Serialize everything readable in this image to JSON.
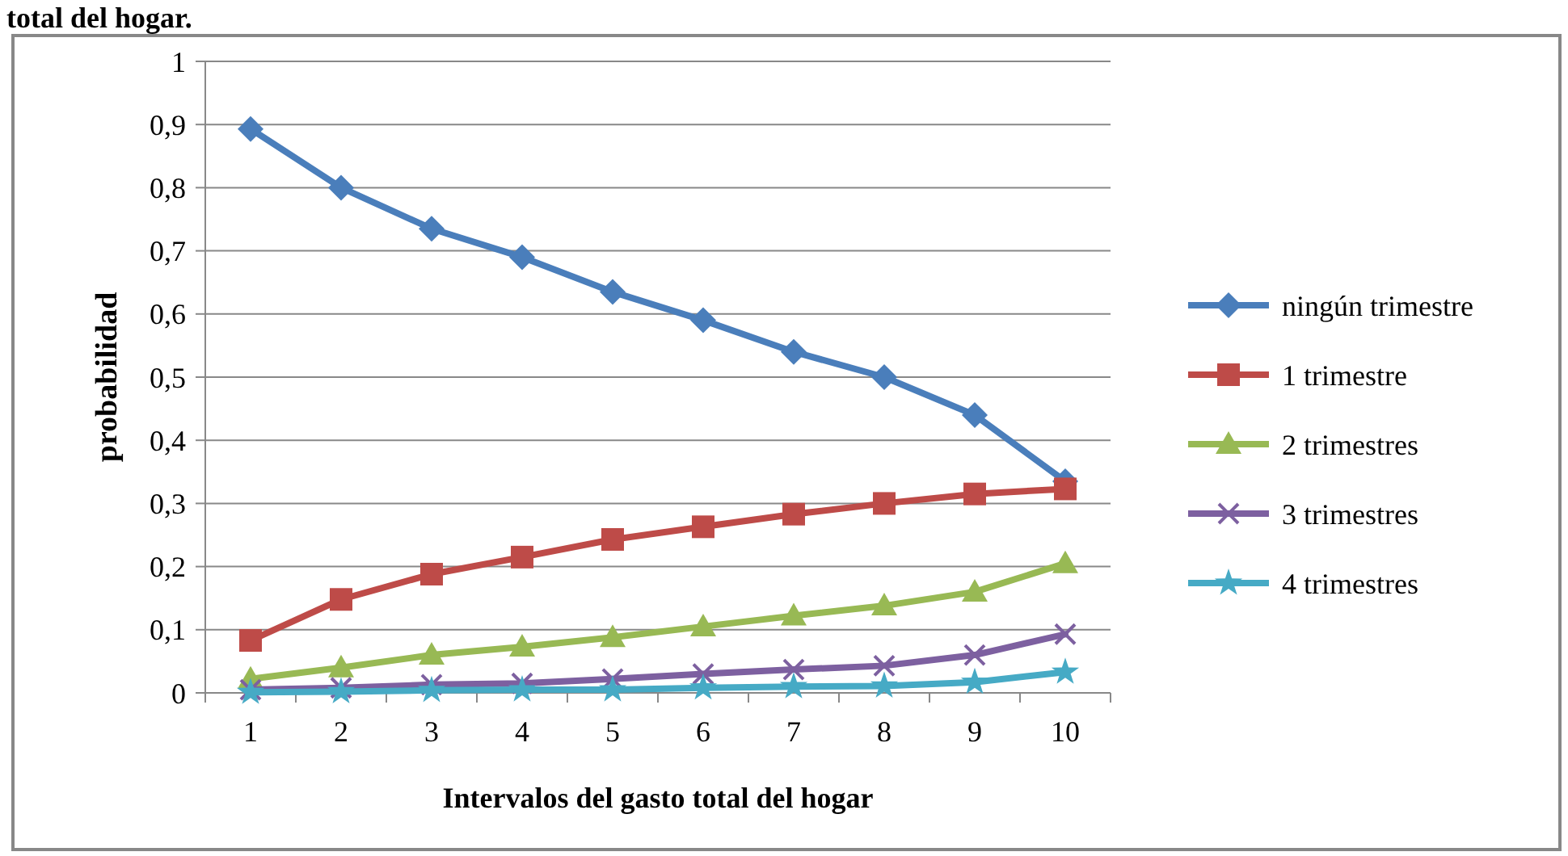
{
  "chart_data": {
    "type": "line",
    "annotations": [
      "total del hogar."
    ],
    "xlabel": "Intervalos del gasto total del hogar",
    "ylabel": "probabilidad",
    "categories": [
      "1",
      "2",
      "3",
      "4",
      "5",
      "6",
      "7",
      "8",
      "9",
      "10"
    ],
    "ylim": [
      0,
      1
    ],
    "yticks": [
      0,
      {
        "value": 0.1,
        "label": "0,1"
      },
      {
        "value": 0.2,
        "label": "0,2"
      },
      {
        "value": 0.3,
        "label": "0,3"
      },
      {
        "value": 0.4,
        "label": "0,4"
      },
      {
        "value": 0.5,
        "label": "0,5"
      },
      {
        "value": 0.6,
        "label": "0,6"
      },
      {
        "value": 0.7,
        "label": "0,7"
      },
      {
        "value": 0.8,
        "label": "0,8"
      },
      {
        "value": 0.9,
        "label": "0,9"
      },
      1
    ],
    "grid": "y",
    "legend": "right",
    "series": [
      {
        "name": "ningún trimestre",
        "color": "#4a7ebb",
        "marker": "diamond",
        "values": [
          0.893,
          0.8,
          0.735,
          0.69,
          0.635,
          0.59,
          0.54,
          0.5,
          0.44,
          0.335
        ]
      },
      {
        "name": "1 trimestre",
        "color": "#be4b48",
        "marker": "square",
        "values": [
          0.083,
          0.148,
          0.188,
          0.215,
          0.243,
          0.263,
          0.283,
          0.3,
          0.315,
          0.323
        ]
      },
      {
        "name": "2 trimestres",
        "color": "#98b954",
        "marker": "triangle",
        "values": [
          0.022,
          0.04,
          0.06,
          0.073,
          0.088,
          0.105,
          0.122,
          0.138,
          0.16,
          0.205
        ]
      },
      {
        "name": "3 trimestres",
        "color": "#7d60a0",
        "marker": "cross",
        "values": [
          0.005,
          0.008,
          0.013,
          0.015,
          0.022,
          0.03,
          0.037,
          0.043,
          0.06,
          0.093
        ]
      },
      {
        "name": "4 trimestres",
        "color": "#46aac5",
        "marker": "star",
        "values": [
          0.001,
          0.002,
          0.004,
          0.005,
          0.005,
          0.008,
          0.01,
          0.011,
          0.017,
          0.033
        ]
      }
    ]
  }
}
